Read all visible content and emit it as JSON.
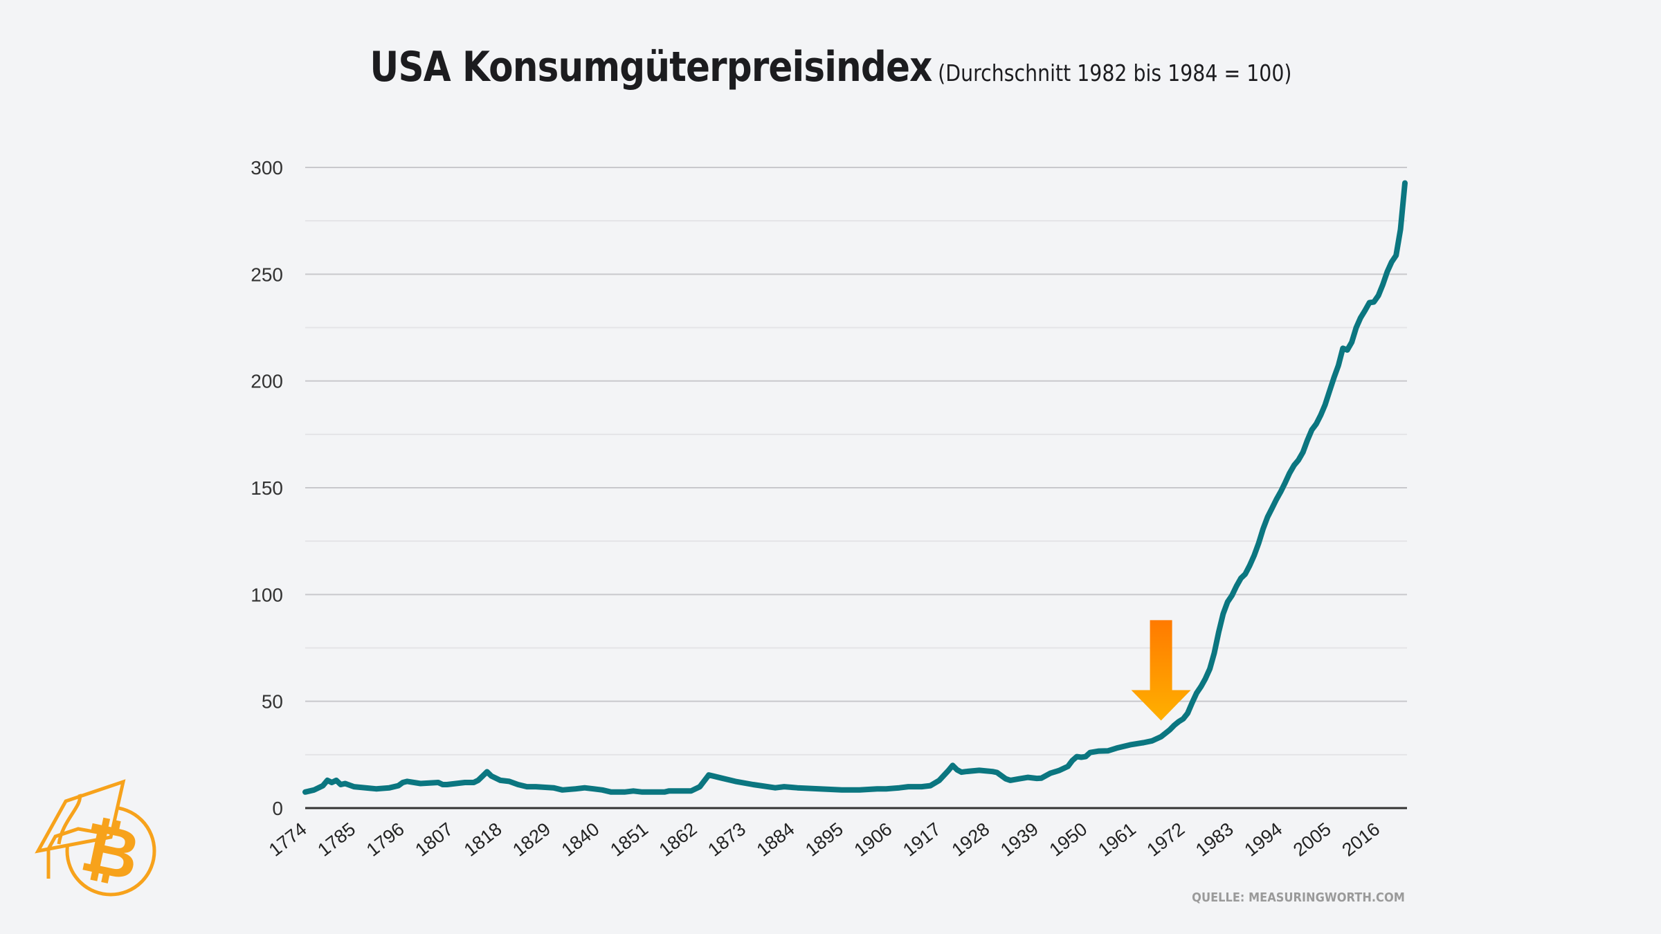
{
  "title": "USA Konsumgüterpreisindex",
  "subtitle": "(Durchschnitt 1982 bis 1984 = 100)",
  "source": "QUELLE: MEASURINGWORTH.COM",
  "colors": {
    "line": "#0b7680",
    "arrow_top": "#ff7a00",
    "arrow_bottom": "#ffb000",
    "logo": "#f7a21b",
    "background": "#f3f4f6"
  },
  "chart_data": {
    "type": "line",
    "title": "USA Konsumgüterpreisindex",
    "subtitle": "(Durchschnitt 1982 bis 1984 = 100)",
    "xlabel": "",
    "ylabel": "",
    "xlim": [
      1774,
      2022
    ],
    "ylim": [
      0,
      300
    ],
    "yticks": [
      0,
      50,
      100,
      150,
      200,
      250,
      300
    ],
    "xticks": [
      1774,
      1785,
      1796,
      1807,
      1818,
      1829,
      1840,
      1851,
      1862,
      1873,
      1884,
      1895,
      1906,
      1917,
      1928,
      1939,
      1950,
      1961,
      1972,
      1983,
      1994,
      2005,
      2016
    ],
    "grid": true,
    "legend": "none",
    "annotation": {
      "type": "arrow-down",
      "x": 1967,
      "y_from": 88,
      "y_to": 41
    },
    "x": [
      1774,
      1776,
      1778,
      1779,
      1780,
      1781,
      1782,
      1783,
      1785,
      1790,
      1793,
      1795,
      1796,
      1797,
      1800,
      1804,
      1805,
      1806,
      1808,
      1810,
      1812,
      1813,
      1814,
      1815,
      1816,
      1818,
      1820,
      1822,
      1824,
      1826,
      1830,
      1832,
      1835,
      1837,
      1839,
      1841,
      1843,
      1846,
      1848,
      1850,
      1855,
      1856,
      1859,
      1861,
      1863,
      1865,
      1866,
      1868,
      1871,
      1875,
      1880,
      1882,
      1885,
      1890,
      1895,
      1899,
      1903,
      1905,
      1908,
      1910,
      1913,
      1915,
      1917,
      1919,
      1920,
      1921,
      1922,
      1923,
      1926,
      1929,
      1930,
      1932,
      1933,
      1935,
      1937,
      1939,
      1940,
      1942,
      1944,
      1946,
      1947,
      1948,
      1949,
      1950,
      1951,
      1953,
      1955,
      1957,
      1960,
      1963,
      1965,
      1967,
      1969,
      1970,
      1971,
      1972,
      1973,
      1974,
      1975,
      1976,
      1977,
      1978,
      1979,
      1980,
      1981,
      1982,
      1983,
      1984,
      1985,
      1986,
      1987,
      1988,
      1989,
      1990,
      1991,
      1992,
      1993,
      1994,
      1995,
      1996,
      1997,
      1998,
      1999,
      2000,
      2001,
      2002,
      2003,
      2004,
      2005,
      2006,
      2007,
      2008,
      2009,
      2010,
      2011,
      2012,
      2013,
      2014,
      2015,
      2016,
      2017,
      2018,
      2019,
      2020,
      2021,
      2022
    ],
    "values": [
      7.5,
      8.5,
      10.5,
      13,
      12,
      13,
      11,
      11.5,
      10,
      9,
      9.5,
      10.5,
      12,
      12.5,
      11.5,
      12,
      11,
      11,
      11.5,
      12,
      12,
      13,
      15,
      17,
      15,
      13,
      12.5,
      11,
      10,
      10,
      9.5,
      8.5,
      9,
      9.5,
      9,
      8.5,
      7.5,
      7.5,
      8,
      7.5,
      7.5,
      8,
      8,
      8,
      10,
      15.5,
      15,
      14,
      12.5,
      11,
      9.5,
      10,
      9.5,
      9,
      8.5,
      8.5,
      9,
      9,
      9.5,
      10,
      10,
      10.5,
      13,
      17.5,
      20,
      17.9,
      16.8,
      17.1,
      17.7,
      17.1,
      16.7,
      13.7,
      13,
      13.7,
      14.4,
      13.9,
      14,
      16.3,
      17.6,
      19.5,
      22.3,
      24.1,
      23.8,
      24.1,
      26,
      26.7,
      26.8,
      28.1,
      29.6,
      30.6,
      31.5,
      33.4,
      36.7,
      38.8,
      40.5,
      41.8,
      44.4,
      49.3,
      53.8,
      56.9,
      60.6,
      65.2,
      72.6,
      82.4,
      90.9,
      96.5,
      99.6,
      103.9,
      107.6,
      109.6,
      113.6,
      118.3,
      124,
      130.7,
      136.2,
      140.3,
      144.5,
      148.2,
      152.4,
      156.9,
      160.5,
      163,
      166.6,
      172.2,
      177.1,
      179.9,
      184,
      188.9,
      195.3,
      201.6,
      207.3,
      215.3,
      214.5,
      218.1,
      224.9,
      229.6,
      233,
      236.7,
      237,
      240,
      245.1,
      251.1,
      255.7,
      258.8,
      271,
      292.7
    ]
  }
}
